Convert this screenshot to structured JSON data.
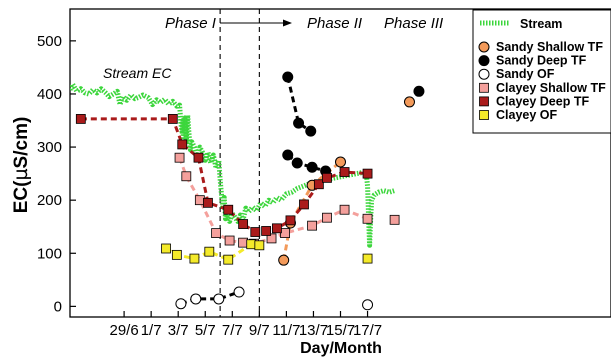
{
  "chart_data": {
    "type": "line",
    "title": "",
    "xlabel": "Day/Month",
    "ylabel": "EC(µS/cm)",
    "ylabel_parts": {
      "pre": "EC(",
      "mu": "µ",
      "post": "S/cm)"
    },
    "x_range": [
      -4,
      36
    ],
    "ylim": [
      -20,
      560
    ],
    "x_ticks": [
      {
        "x": 0,
        "label": "29/6"
      },
      {
        "x": 2,
        "label": "1/7"
      },
      {
        "x": 4,
        "label": "3/7"
      },
      {
        "x": 6,
        "label": "5/7"
      },
      {
        "x": 8,
        "label": "7/7"
      },
      {
        "x": 10,
        "label": "9/7"
      },
      {
        "x": 12,
        "label": "11/7"
      },
      {
        "x": 14,
        "label": "13/7"
      },
      {
        "x": 16,
        "label": "15/7"
      },
      {
        "x": 18,
        "label": "17/7"
      }
    ],
    "y_ticks": [
      0,
      100,
      200,
      300,
      400,
      500
    ],
    "phases": [
      {
        "label": "Phase I",
        "x": 7.1
      },
      {
        "label": "Phase II",
        "x": 10.0
      },
      {
        "label": "Phase III"
      }
    ],
    "annotation": "Stream EC",
    "legend_position": "top-right",
    "colors": {
      "stream": "#3cd63c",
      "sandy_shallow": "#f39a5a",
      "sandy_deep": "#000000",
      "sandy_of": "#ffffff",
      "clayey_shallow": "#f4a09c",
      "clayey_deep": "#aa1b1b",
      "clayey_of": "#f4ea2a"
    },
    "stream": [
      [
        -4,
        408
      ],
      [
        -3.8,
        418
      ],
      [
        -3.5,
        405
      ],
      [
        -3.2,
        410
      ],
      [
        -2.9,
        402
      ],
      [
        -2.6,
        400
      ],
      [
        -2.3,
        408
      ],
      [
        -2,
        402
      ],
      [
        -1.7,
        410
      ],
      [
        -1.4,
        403
      ],
      [
        -1.1,
        395
      ],
      [
        -0.8,
        400
      ],
      [
        -0.5,
        405
      ],
      [
        -0.3,
        380
      ],
      [
        -0.1,
        395
      ],
      [
        0.2,
        388
      ],
      [
        0.5,
        398
      ],
      [
        0.8,
        391
      ],
      [
        1.1,
        394
      ],
      [
        1.4,
        398
      ],
      [
        1.8,
        393
      ],
      [
        2.1,
        380
      ],
      [
        2.4,
        389
      ],
      [
        2.7,
        384
      ],
      [
        3.0,
        390
      ],
      [
        3.3,
        381
      ],
      [
        3.6,
        386
      ],
      [
        3.9,
        377
      ],
      [
        4.1,
        379
      ],
      [
        4.2,
        345
      ],
      [
        4.3,
        325
      ],
      [
        4.35,
        350
      ],
      [
        4.4,
        300
      ],
      [
        4.45,
        340
      ],
      [
        4.5,
        355
      ],
      [
        4.6,
        310
      ],
      [
        4.7,
        360
      ],
      [
        4.8,
        325
      ],
      [
        4.9,
        295
      ],
      [
        5.0,
        310
      ],
      [
        5.2,
        300
      ],
      [
        5.4,
        280
      ],
      [
        5.6,
        300
      ],
      [
        5.8,
        290
      ],
      [
        6.0,
        275
      ],
      [
        6.2,
        290
      ],
      [
        6.4,
        270
      ],
      [
        6.6,
        285
      ],
      [
        6.8,
        260
      ],
      [
        7.0,
        275
      ],
      [
        7.1,
        240
      ],
      [
        7.2,
        210
      ],
      [
        7.3,
        185
      ],
      [
        7.4,
        205
      ],
      [
        7.5,
        165
      ],
      [
        7.6,
        175
      ],
      [
        7.8,
        160
      ],
      [
        8.0,
        175
      ],
      [
        8.2,
        168
      ],
      [
        8.4,
        160
      ],
      [
        8.6,
        172
      ],
      [
        8.8,
        163
      ],
      [
        9.0,
        185
      ],
      [
        9.2,
        178
      ],
      [
        9.5,
        187
      ],
      [
        9.8,
        180
      ],
      [
        10.1,
        195
      ],
      [
        10.4,
        188
      ],
      [
        10.7,
        200
      ],
      [
        11.0,
        195
      ],
      [
        11.3,
        205
      ],
      [
        11.6,
        200
      ],
      [
        12.0,
        212
      ],
      [
        12.4,
        215
      ],
      [
        12.8,
        222
      ],
      [
        13.2,
        226
      ],
      [
        13.6,
        230
      ],
      [
        14.0,
        232
      ],
      [
        14.4,
        235
      ],
      [
        14.8,
        238
      ],
      [
        15.2,
        240
      ],
      [
        15.6,
        242
      ],
      [
        16.0,
        244
      ],
      [
        16.4,
        246
      ],
      [
        16.8,
        248
      ],
      [
        17.2,
        250
      ],
      [
        17.6,
        252
      ],
      [
        17.9,
        252
      ],
      [
        18.0,
        225
      ],
      [
        18.05,
        190
      ],
      [
        18.1,
        150
      ],
      [
        18.15,
        115
      ],
      [
        18.2,
        150
      ],
      [
        18.3,
        200
      ],
      [
        18.5,
        210
      ],
      [
        18.8,
        215
      ],
      [
        19.2,
        218
      ],
      [
        19.6,
        215
      ],
      [
        20.0,
        218
      ]
    ],
    "series": [
      {
        "name": "Sandy Shallow TF",
        "marker": "circle",
        "points": [
          [
            11.8,
            87
          ],
          [
            12.3,
            157
          ],
          [
            13.9,
            228
          ],
          [
            16.0,
            272
          ]
        ],
        "offscale": [
          {
            "x": 21.1,
            "y": 385
          }
        ]
      },
      {
        "name": "Sandy Deep TF",
        "marker": "circle",
        "segments": [
          [
            [
              12.1,
              432
            ],
            [
              12.9,
              345
            ],
            [
              13.8,
              330
            ]
          ],
          [
            [
              12.1,
              285
            ],
            [
              12.8,
              270
            ],
            [
              13.9,
              262
            ],
            [
              14.9,
              255
            ]
          ]
        ],
        "offscale": [
          {
            "x": 21.8,
            "y": 405
          }
        ]
      },
      {
        "name": "Sandy OF",
        "marker": "circle",
        "points": [
          [
            4.2,
            5
          ],
          [
            5.3,
            14
          ],
          [
            7.0,
            14
          ],
          [
            8.5,
            27
          ]
        ],
        "offscale": [
          {
            "x": 18.0,
            "y": 3
          }
        ]
      },
      {
        "name": "Clayey Shallow TF",
        "marker": "square",
        "points": [
          [
            4.1,
            280
          ],
          [
            4.6,
            245
          ],
          [
            5.6,
            200
          ],
          [
            6.8,
            138
          ],
          [
            7.8,
            124
          ],
          [
            8.8,
            120
          ],
          [
            9.6,
            118
          ],
          [
            10.9,
            128
          ],
          [
            11.9,
            138
          ],
          [
            13.9,
            152
          ],
          [
            15.0,
            167
          ],
          [
            16.3,
            182
          ],
          [
            18.0,
            165
          ]
        ],
        "offscale": [
          {
            "x": 20.0,
            "y": 163
          }
        ]
      },
      {
        "name": "Clayey Deep TF",
        "marker": "square",
        "points": [
          [
            -3.2,
            353
          ],
          [
            3.6,
            353
          ],
          [
            4.3,
            305
          ],
          [
            5.5,
            280
          ],
          [
            6.2,
            195
          ],
          [
            7.7,
            182
          ],
          [
            8.8,
            155
          ],
          [
            9.7,
            140
          ],
          [
            10.5,
            142
          ],
          [
            11.3,
            147
          ],
          [
            12.3,
            162
          ],
          [
            13.3,
            192
          ],
          [
            14.4,
            230
          ],
          [
            15.0,
            242
          ],
          [
            16.3,
            253
          ],
          [
            18.0,
            250
          ]
        ]
      },
      {
        "name": "Clayey OF",
        "marker": "square",
        "points": [
          [
            3.1,
            109
          ],
          [
            3.9,
            97
          ],
          [
            5.2,
            90
          ],
          [
            6.3,
            103
          ],
          [
            7.7,
            88
          ],
          [
            9.4,
            117
          ],
          [
            10.0,
            115
          ]
        ],
        "offscale": [
          {
            "x": 18.0,
            "y": 90
          }
        ]
      }
    ]
  }
}
